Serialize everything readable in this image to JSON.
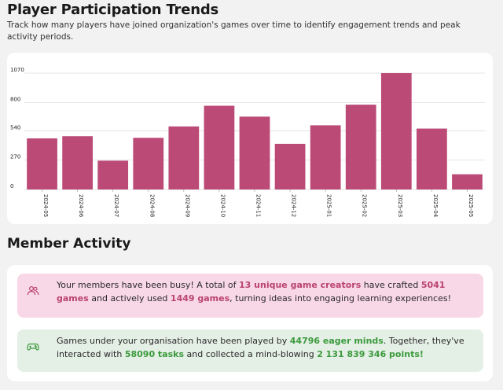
{
  "header": {
    "title": "Player Participation Trends",
    "subtitle": "Track how many players have joined organization's games over time to identify engagement trends and peak activity periods."
  },
  "chart_data": {
    "type": "bar",
    "categories": [
      "2024-05",
      "2024-06",
      "2024-07",
      "2024-08",
      "2024-09",
      "2024-10",
      "2024-11",
      "2024-12",
      "2025-01",
      "2025-02",
      "2025-03",
      "2025-04",
      "2025-05"
    ],
    "values": [
      470,
      490,
      265,
      475,
      580,
      770,
      670,
      420,
      590,
      780,
      1070,
      560,
      140
    ],
    "yticks": [
      0,
      270,
      540,
      800,
      1070
    ],
    "ylim": [
      0,
      1070
    ],
    "bar_color": "#bc4a77",
    "grid": true,
    "title": "",
    "xlabel": "",
    "ylabel": ""
  },
  "member_activity": {
    "title": "Member Activity",
    "creators": {
      "icon": "users-icon",
      "t1": "Your members have been busy! A total of ",
      "creators_count": "13 unique game creators",
      "t2": " have crafted ",
      "games_crafted": "5041 games",
      "t3": " and actively used ",
      "games_used": "1449 games",
      "t4": ", turning ideas into engaging learning experiences!"
    },
    "players": {
      "icon": "gamepad-icon",
      "t1": "Games under your organisation have been played by ",
      "players_count": "44796 eager minds",
      "t2": ". Together, they've interacted with ",
      "tasks_count": "58090 tasks",
      "t3": " and collected a mind-blowing ",
      "points": "2 131 839 346 points!"
    },
    "colors": {
      "pink_bg": "#f8d7e6",
      "pink_text": "#b9436f",
      "green_bg": "#e4efe6",
      "green_text": "#3c9a3c"
    }
  }
}
